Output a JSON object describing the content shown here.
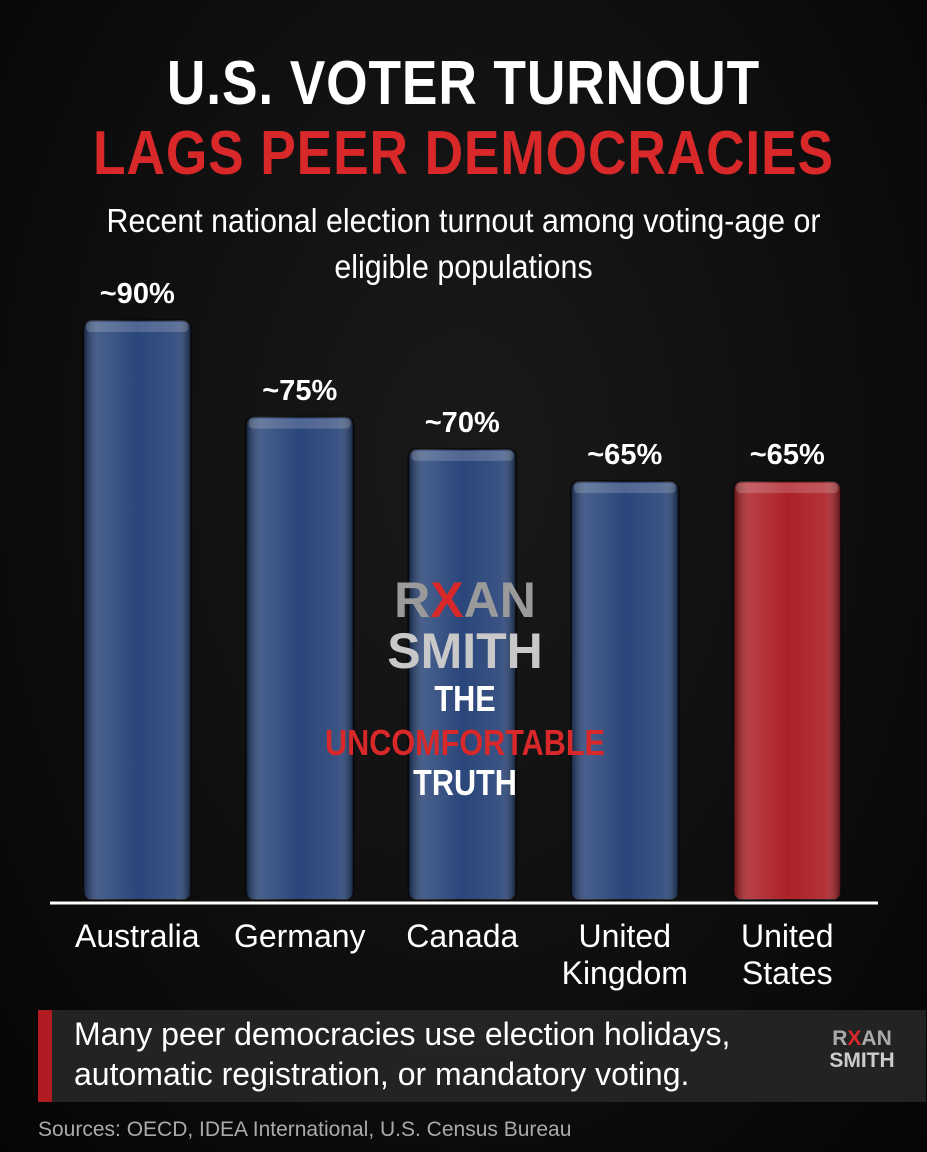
{
  "chart_data": {
    "type": "bar",
    "title": [
      "U.S. VOTER TURNOUT",
      "LAGS PEER DEMOCRACIES"
    ],
    "subtitle": "Recent national election turnout among voting-age or eligible populations",
    "categories": [
      "Australia",
      "Germany",
      "Canada",
      "United Kingdom",
      "United States"
    ],
    "values": [
      90,
      75,
      70,
      65,
      65
    ],
    "value_labels": [
      "~90%",
      "~75%",
      "~70%",
      "~65%",
      "~65%"
    ],
    "colors": [
      "#1f3c73",
      "#1f3c73",
      "#1f3c73",
      "#1f3c73",
      "#a8161d"
    ],
    "note": "Many peer democracies use election holidays, automatic registration, or mandatory voting.",
    "source": "Sources: OECD, IDEA International, U.S. Census Bureau"
  },
  "logo": {
    "name": [
      "R",
      "X",
      "AN"
    ],
    "surname": "SMITH",
    "tagline": [
      "THE",
      "UNCOMFORTABLE",
      "TRUTH"
    ]
  }
}
